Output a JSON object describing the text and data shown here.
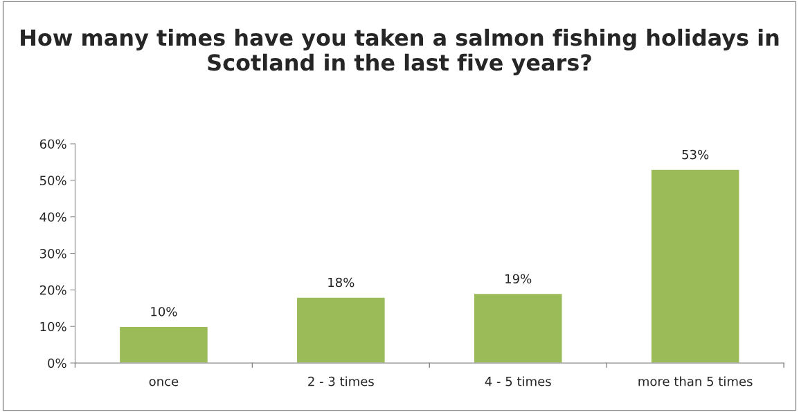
{
  "chart_data": {
    "type": "bar",
    "title": "How many times have you taken a salmon fishing holidays in Scotland in the last five years?",
    "categories": [
      "once",
      "2 - 3 times",
      "4 - 5 times",
      "more than 5 times"
    ],
    "values": [
      10,
      18,
      19,
      53
    ],
    "value_labels": [
      "10%",
      "18%",
      "19%",
      "53%"
    ],
    "color": "#9bbb59",
    "ylim": [
      0,
      60
    ],
    "yticks": [
      {
        "value": 0,
        "label": "0%"
      },
      {
        "value": 10,
        "label": "10%"
      },
      {
        "value": 20,
        "label": "20%"
      },
      {
        "value": 30,
        "label": "30%"
      },
      {
        "value": 40,
        "label": "40%"
      },
      {
        "value": 50,
        "label": "50%"
      },
      {
        "value": 60,
        "label": "60%"
      }
    ],
    "grid": false,
    "legend": false
  }
}
